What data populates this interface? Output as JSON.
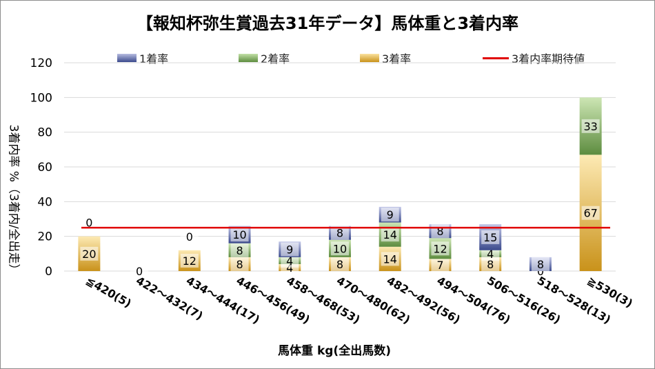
{
  "colors": {
    "series1": "#3b4a8c",
    "series2": "#5d8c3f",
    "series3": "#c9921a",
    "expected": "#e00000",
    "grid": "#d9d9d9"
  },
  "chart_data": {
    "type": "bar",
    "stacked": true,
    "title": "【報知杯弥生賞過去31年データ】馬体重と3着内率",
    "xlabel": "馬体重 kg(全出馬数)",
    "ylabel": "3着内率 %（3着内/全出走）",
    "ylim": [
      0,
      120
    ],
    "yticks": [
      0,
      20,
      40,
      60,
      80,
      100,
      120
    ],
    "categories": [
      "≦420(5)",
      "422～432(7)",
      "434～444(17)",
      "446～456(49)",
      "458～468(53)",
      "470～480(62)",
      "482～492(56)",
      "494～504(76)",
      "506～516(26)",
      "518～528(13)",
      "≧530(3)"
    ],
    "series": [
      {
        "name": "3着率",
        "values": [
          20,
          0,
          12,
          8,
          4,
          8,
          14,
          7,
          8,
          0,
          67
        ]
      },
      {
        "name": "2着率",
        "values": [
          0,
          0,
          0,
          8,
          4,
          10,
          14,
          12,
          4,
          0,
          33
        ]
      },
      {
        "name": "1着率",
        "values": [
          0,
          0,
          0,
          10,
          9,
          8,
          9,
          8,
          15,
          8,
          0
        ]
      }
    ],
    "expected_line": {
      "name": "3着内率期待値",
      "value": 25
    },
    "legend": "top",
    "grid": true
  }
}
